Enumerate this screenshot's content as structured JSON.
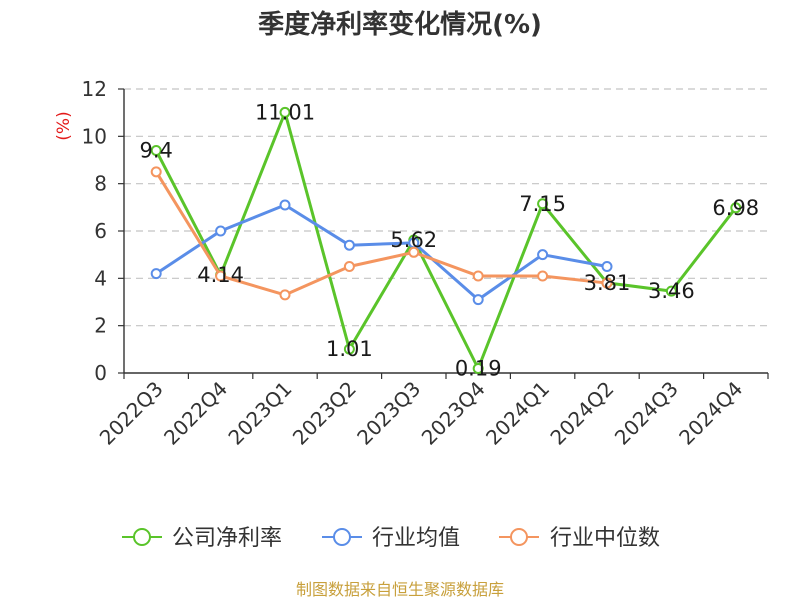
{
  "footer": "制图数据来自恒生聚源数据库",
  "chart_data": {
    "type": "line",
    "title": "季度净利率变化情况(%)",
    "xlabel": "",
    "ylabel": "(%)",
    "ylim": [
      0,
      12
    ],
    "yticks": [
      0,
      2,
      4,
      6,
      8,
      10,
      12
    ],
    "grid": true,
    "legend_position": "bottom",
    "categories": [
      "2022Q3",
      "2022Q4",
      "2023Q1",
      "2023Q2",
      "2023Q3",
      "2023Q4",
      "2024Q1",
      "2024Q2",
      "2024Q3",
      "2024Q4"
    ],
    "series": [
      {
        "name": "公司净利率",
        "color": "#5ac42a",
        "show_labels": true,
        "values": [
          9.4,
          4.14,
          11.01,
          1.01,
          5.62,
          0.19,
          7.15,
          3.81,
          3.46,
          6.98
        ]
      },
      {
        "name": "行业均值",
        "color": "#5a8de8",
        "show_labels": false,
        "values": [
          4.2,
          6.0,
          7.1,
          5.4,
          5.5,
          3.1,
          5.0,
          4.5,
          null,
          null
        ]
      },
      {
        "name": "行业中位数",
        "color": "#f4955f",
        "show_labels": false,
        "values": [
          8.5,
          4.1,
          3.3,
          4.5,
          5.1,
          4.1,
          4.1,
          3.8,
          null,
          null
        ]
      }
    ]
  }
}
